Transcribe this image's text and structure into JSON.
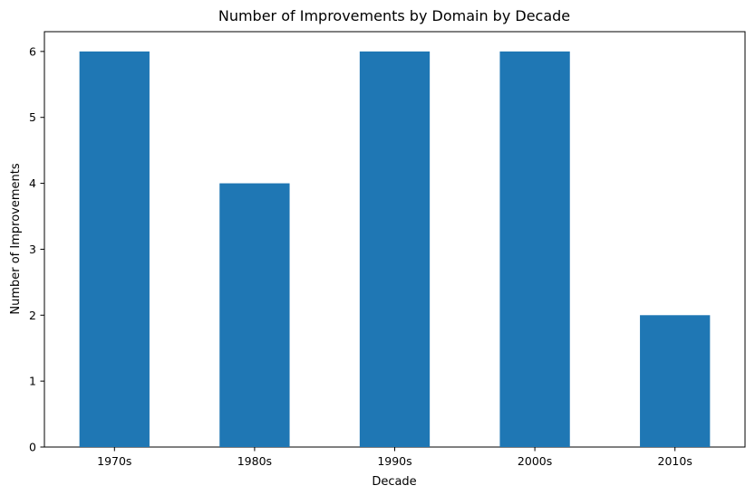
{
  "chart_data": {
    "type": "bar",
    "title": "Number of Improvements by Domain by Decade",
    "xlabel": "Decade",
    "ylabel": "Number of Improvements",
    "categories": [
      "1970s",
      "1980s",
      "1990s",
      "2000s",
      "2010s"
    ],
    "values": [
      6,
      4,
      6,
      6,
      2
    ],
    "ylim": [
      0,
      6.3
    ],
    "yticks": [
      "0",
      "1",
      "2",
      "3",
      "4",
      "5",
      "6"
    ],
    "grid": false,
    "legend": false,
    "colors": {
      "bar": "#1f77b4",
      "axis": "#000000",
      "background": "#ffffff"
    }
  }
}
